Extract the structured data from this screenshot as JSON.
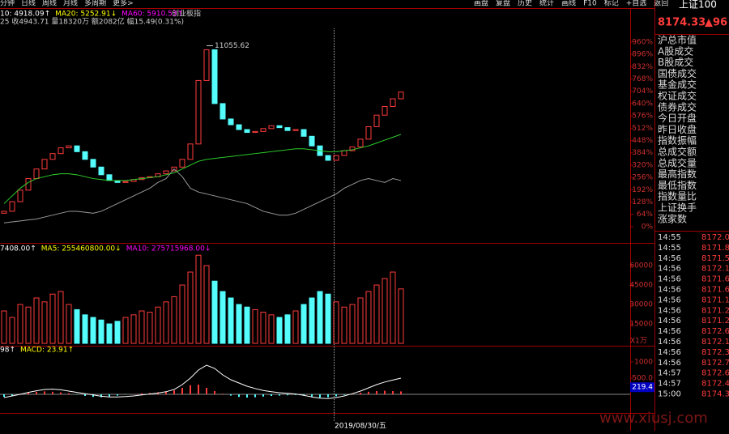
{
  "toolbar": {
    "left": [
      "分钟",
      "日线",
      "周线",
      "月线",
      "多周期",
      "更多>"
    ],
    "right": [
      "画盘",
      "复盘",
      "历史",
      "统计",
      "画线",
      "F10",
      "标记",
      "+自选",
      "返回"
    ]
  },
  "chart_data": [
    {
      "type": "line",
      "legend": [
        "10: 4918.09↑",
        "MA20: 5252.91↓",
        "MA60: 5910.53↑"
      ],
      "subtitle": "创业板指",
      "info": "25 收4943.71 量18320万 额2082亿 幅15.49(0.31%)",
      "annotation": "11055.62",
      "ylim": [
        -76,
        1086
      ],
      "yticks": [
        {
          "value": 960,
          "label": "960%"
        },
        {
          "value": 896,
          "label": "896%"
        },
        {
          "value": 832,
          "label": "832%"
        },
        {
          "value": 768,
          "label": "768%"
        },
        {
          "value": 704,
          "label": "704%"
        },
        {
          "value": 640,
          "label": "640%"
        },
        {
          "value": 576,
          "label": "576%"
        },
        {
          "value": 512,
          "label": "512%"
        },
        {
          "value": 448,
          "label": "448%"
        },
        {
          "value": 384,
          "label": "384%"
        },
        {
          "value": 320,
          "label": "320%"
        },
        {
          "value": 256,
          "label": "256%"
        },
        {
          "value": 192,
          "label": "192%"
        },
        {
          "value": 128,
          "label": "128%"
        },
        {
          "value": 64,
          "label": "64%"
        },
        {
          "value": 0,
          "label": "0%"
        }
      ],
      "series": [
        {
          "style": "candle",
          "color": "#ff3c3c",
          "values": [
            80,
            130,
            190,
            250,
            300,
            350,
            380,
            410,
            420,
            390,
            350,
            310,
            270,
            240,
            230,
            235,
            245,
            255,
            260,
            275,
            290,
            310,
            350,
            430,
            760,
            920,
            640,
            560,
            530,
            505,
            490,
            495,
            510,
            525,
            515,
            500,
            505,
            470,
            420,
            370,
            345,
            370,
            395,
            415,
            455,
            520,
            580,
            625,
            665,
            700
          ]
        },
        {
          "style": "line",
          "color": "#9a9a9a",
          "values": [
            20,
            25,
            30,
            35,
            40,
            50,
            60,
            70,
            80,
            80,
            75,
            70,
            80,
            100,
            120,
            140,
            160,
            180,
            200,
            230,
            250,
            300,
            260,
            200,
            180,
            170,
            160,
            150,
            140,
            130,
            120,
            100,
            80,
            70,
            60,
            60,
            70,
            90,
            110,
            130,
            150,
            170,
            200,
            220,
            240,
            250,
            240,
            230,
            250,
            240
          ]
        },
        {
          "style": "line",
          "color": "#2ed12e",
          "values": [
            120,
            160,
            200,
            230,
            250,
            260,
            270,
            275,
            275,
            270,
            260,
            250,
            245,
            240,
            240,
            240,
            245,
            250,
            255,
            260,
            270,
            280,
            300,
            320,
            340,
            350,
            355,
            360,
            365,
            370,
            375,
            380,
            385,
            390,
            395,
            400,
            405,
            405,
            400,
            395,
            390,
            390,
            395,
            400,
            410,
            420,
            435,
            450,
            465,
            480
          ]
        }
      ]
    },
    {
      "type": "bar",
      "legend": [
        "7408.00↑",
        "MA5: 255460800.00↓",
        "MA10: 275715968.00↓"
      ],
      "unit": "X1万",
      "ylim": [
        -600,
        70000
      ],
      "yticks": [
        60000,
        45000,
        30000,
        15000
      ],
      "values": [
        25000,
        20000,
        30000,
        28000,
        35000,
        32000,
        38000,
        40000,
        30000,
        26000,
        22000,
        20000,
        18000,
        15000,
        17000,
        20000,
        22000,
        25000,
        24000,
        28000,
        32000,
        36000,
        45000,
        55000,
        68000,
        60000,
        48000,
        40000,
        35000,
        30000,
        28000,
        26000,
        24000,
        22000,
        20000,
        22000,
        25000,
        30000,
        35000,
        40000,
        38000,
        32000,
        28000,
        30000,
        35000,
        40000,
        45000,
        50000,
        55000,
        42000
      ]
    },
    {
      "type": "macd",
      "legend": [
        "98↑",
        "MACD: 23.91↑"
      ],
      "ylim": [
        -450,
        1175
      ],
      "yticks": [
        1000,
        {
          "value": 500,
          "label": "500.0"
        }
      ],
      "marker": 219.4,
      "values": [
        -80,
        -40,
        20,
        60,
        80,
        90,
        80,
        60,
        30,
        -10,
        -50,
        -80,
        -90,
        -70,
        -40,
        -10,
        10,
        30,
        40,
        60,
        80,
        120,
        200,
        280,
        300,
        200,
        100,
        20,
        -40,
        -80,
        -100,
        -90,
        -70,
        -50,
        -40,
        -30,
        -20,
        -40,
        -70,
        -100,
        -90,
        -60,
        -20,
        20,
        50,
        80,
        100,
        110,
        100,
        90
      ],
      "dif": [
        -100,
        -50,
        0,
        60,
        110,
        150,
        160,
        140,
        100,
        60,
        20,
        -20,
        -60,
        -80,
        -80,
        -70,
        -50,
        -20,
        10,
        40,
        80,
        150,
        300,
        500,
        750,
        900,
        800,
        600,
        450,
        350,
        250,
        180,
        120,
        80,
        50,
        30,
        10,
        -30,
        -80,
        -120,
        -130,
        -100,
        -50,
        20,
        100,
        200,
        300,
        380,
        440,
        500
      ]
    }
  ],
  "date": "2019/08/30/五",
  "quote": {
    "name": "上证100",
    "price": "8174.33",
    "change": "▲96",
    "fields": [
      "沪总市值",
      "A股成交",
      "B股成交",
      "国债成交",
      "基金成交",
      "权证成交",
      "债券成交",
      "今日开盘",
      "昨日收盘",
      "指数振幅",
      "总成交额",
      "总成交量",
      "最高指数",
      "最低指数",
      "指数量比",
      "上证换手",
      "涨家数"
    ]
  },
  "trades": [
    [
      "14:55",
      "8172.0"
    ],
    [
      "14:55",
      "8171.8"
    ],
    [
      "14:56",
      "8171.5"
    ],
    [
      "14:56",
      "8172.1"
    ],
    [
      "14:56",
      "8171.6"
    ],
    [
      "14:56",
      "8171.6"
    ],
    [
      "14:56",
      "8171.1"
    ],
    [
      "14:56",
      "8171.2"
    ],
    [
      "14:56",
      "8171.2"
    ],
    [
      "14:56",
      "8172.6"
    ],
    [
      "14:56",
      "8172.1"
    ],
    [
      "14:56",
      "8172.3"
    ],
    [
      "14:56",
      "8172.7"
    ],
    [
      "14:57",
      "8172.6"
    ],
    [
      "14:57",
      "8172.4"
    ],
    [
      "15:00",
      "8174.3"
    ]
  ],
  "watermark": "www.xiusj.com"
}
